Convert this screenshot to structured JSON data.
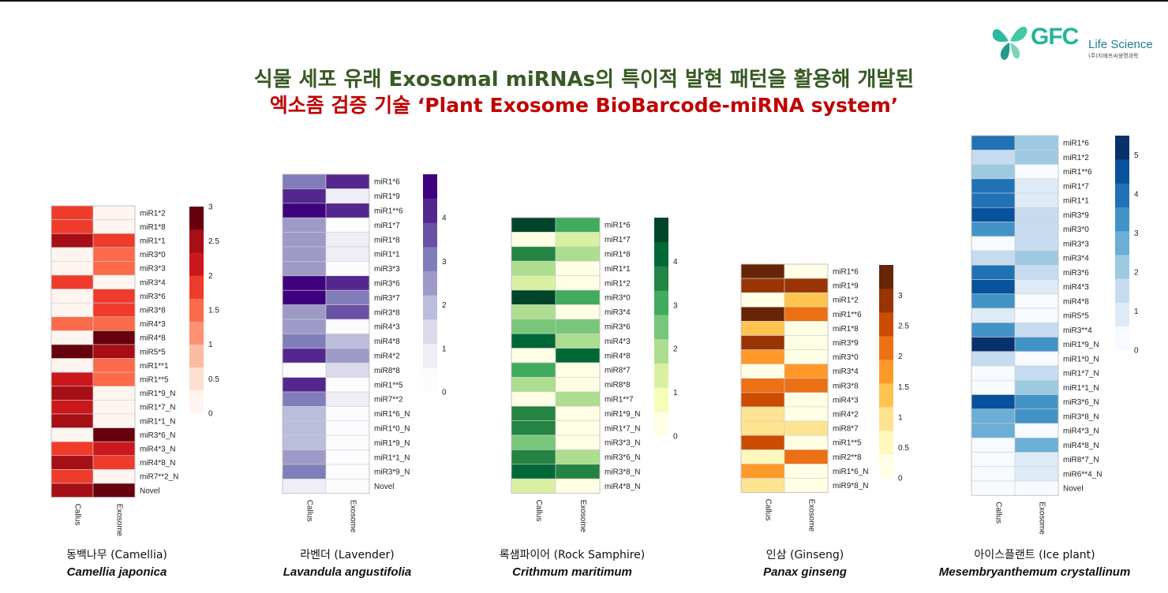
{
  "title_line1": "식물 세포 유래 Exosomal miRNAs의 특이적 발현 패턴을 활용해 개발된",
  "title_line2": "엑소좀 검증 기술  ‘Plant Exosome BioBarcode-miRNA system’",
  "logo": {
    "brand": "GFC",
    "name": "Life Science",
    "subtitle": "(주)지에프씨생명과학"
  },
  "chart_data": [
    {
      "type": "heatmap",
      "caption_kr": "동백나무 (Camellia)",
      "caption_sci": "Camellia japonica",
      "columns": [
        "Callus",
        "Exosome"
      ],
      "rows": [
        "miR1*2",
        "miR1*8",
        "miR1*1",
        "miR3*0",
        "miR3*3",
        "miR3*4",
        "miR3*6",
        "miR3*8",
        "miR4*3",
        "miR4*8",
        "miR5*5",
        "miR1**1",
        "miR1**5",
        "miR1*9_N",
        "miR1*7_N",
        "miR1*1_N",
        "miR3*6_N",
        "miR4*3_N",
        "miR4*8_N",
        "miR7**2_N",
        "Novel"
      ],
      "values": [
        [
          1.9,
          0.1
        ],
        [
          1.9,
          0.1
        ],
        [
          2.4,
          1.9
        ],
        [
          0.1,
          1.6
        ],
        [
          0.1,
          1.6
        ],
        [
          1.9,
          0.1
        ],
        [
          0.1,
          1.9
        ],
        [
          0.1,
          1.9
        ],
        [
          1.5,
          1.5
        ],
        [
          0.1,
          3.0
        ],
        [
          2.8,
          2.4
        ],
        [
          0.1,
          1.6
        ],
        [
          2.1,
          1.6
        ],
        [
          2.6,
          0.1
        ],
        [
          2.0,
          0.1
        ],
        [
          2.6,
          0.1
        ],
        [
          0.1,
          3.0
        ],
        [
          1.9,
          2.0
        ],
        [
          2.4,
          1.9
        ],
        [
          1.9,
          0.1
        ],
        [
          2.4,
          3.0
        ]
      ],
      "colorbar": {
        "min": 0,
        "max": 3,
        "ticks": [
          "3",
          "2.5",
          "2",
          "1.5",
          "1",
          "0.5",
          "0"
        ]
      },
      "colors": [
        "#fff5f0",
        "#fee0d2",
        "#fcbba1",
        "#fc9272",
        "#fb6a4a",
        "#ef3b2c",
        "#cb181d",
        "#a50f15",
        "#67000d"
      ]
    },
    {
      "type": "heatmap",
      "caption_kr": "라벤더 (Lavender)",
      "caption_sci": "Lavandula angustifolia",
      "columns": [
        "Callus",
        "Exosome"
      ],
      "rows": [
        "miR1*6",
        "miR1*9",
        "miR1**6",
        "miR1*7",
        "miR1*8",
        "miR1*1",
        "miR3*3",
        "miR3*6",
        "miR3*7",
        "miR3*8",
        "miR4*3",
        "miR4*8",
        "miR4*2",
        "miR8*8",
        "miR1**5",
        "miR7**2",
        "miR1*6_N",
        "miR1*0_N",
        "miR1*9_N",
        "miR1*1_N",
        "miR3*9_N",
        "Novel"
      ],
      "values": [
        [
          3.0,
          4.3
        ],
        [
          4.0,
          0.7
        ],
        [
          4.7,
          4.4
        ],
        [
          2.3,
          0.2
        ],
        [
          2.3,
          0.7
        ],
        [
          2.7,
          0.6
        ],
        [
          2.7,
          0.3
        ],
        [
          4.6,
          4.3
        ],
        [
          4.8,
          3.3
        ],
        [
          2.5,
          3.6
        ],
        [
          2.3,
          0.2
        ],
        [
          2.9,
          2.0
        ],
        [
          4.3,
          2.4
        ],
        [
          0.1,
          1.6
        ],
        [
          4.0,
          0.2
        ],
        [
          3.1,
          0.6
        ],
        [
          1.8,
          0.1
        ],
        [
          1.8,
          0.1
        ],
        [
          1.9,
          0.1
        ],
        [
          2.4,
          0.1
        ],
        [
          3.0,
          0.1
        ],
        [
          0.8,
          0.1
        ]
      ],
      "colorbar": {
        "min": 0,
        "max": 5,
        "ticks": [
          "4",
          "3",
          "2",
          "1",
          "0"
        ]
      },
      "colors": [
        "#fcfbfd",
        "#efedf5",
        "#dadaeb",
        "#bcbddc",
        "#9e9ac8",
        "#807dba",
        "#6a51a3",
        "#54278f",
        "#3f007d"
      ]
    },
    {
      "type": "heatmap",
      "caption_kr": "록샘파이어 (Rock Samphire)",
      "caption_sci": "Crithmum maritimum",
      "columns": [
        "Callus",
        "Exosome"
      ],
      "rows": [
        "miR1*6",
        "miR1*7",
        "miR1*8",
        "miR1*1",
        "miR1*2",
        "miR3*0",
        "miR3*4",
        "miR3*6",
        "miR4*3",
        "miR4*8",
        "miR8*7",
        "miR8*8",
        "miR1**7",
        "miR1*9_N",
        "miR1*7_N",
        "miR3*3_N",
        "miR3*6_N",
        "miR3*8_N",
        "miR4*8_N"
      ],
      "values": [
        [
          4.6,
          3.2
        ],
        [
          0.2,
          1.6
        ],
        [
          3.4,
          1.7
        ],
        [
          2.2,
          0.3
        ],
        [
          1.3,
          0.2
        ],
        [
          4.8,
          3.2
        ],
        [
          1.8,
          0.2
        ],
        [
          2.6,
          2.6
        ],
        [
          4.2,
          1.7
        ],
        [
          0.1,
          4.4
        ],
        [
          3.3,
          0.2
        ],
        [
          2.1,
          0.3
        ],
        [
          0.2,
          2.0
        ],
        [
          3.8,
          0.3
        ],
        [
          3.8,
          0.3
        ],
        [
          2.3,
          0.3
        ],
        [
          3.8,
          1.8
        ],
        [
          3.9,
          3.4
        ],
        [
          1.4,
          0.2
        ]
      ],
      "colorbar": {
        "min": 0,
        "max": 5,
        "ticks": [
          "4",
          "3",
          "2",
          "1",
          "0"
        ]
      },
      "colors": [
        "#ffffe5",
        "#f7fcb9",
        "#d9f0a3",
        "#addd8e",
        "#78c679",
        "#41ab5d",
        "#238443",
        "#006837",
        "#004529"
      ]
    },
    {
      "type": "heatmap",
      "caption_kr": "인삼 (Ginseng)",
      "caption_sci": "Panax ginseng",
      "columns": [
        "Callus",
        "Exosome"
      ],
      "rows": [
        "miR1*6",
        "miR1*9",
        "miR1*2",
        "miR1**6",
        "miR1*8",
        "miR3*9",
        "miR3*0",
        "miR3*4",
        "miR3*8",
        "miR4*3",
        "miR4*2",
        "miR8*7",
        "miR1**5",
        "miR2**8",
        "miR1*6_N",
        "miR9*8_N"
      ],
      "values": [
        [
          3.3,
          0.1
        ],
        [
          2.8,
          3.1
        ],
        [
          0.1,
          1.4
        ],
        [
          3.5,
          2.2
        ],
        [
          1.5,
          0.1
        ],
        [
          3.1,
          0.1
        ],
        [
          1.9,
          0.1
        ],
        [
          0.1,
          1.8
        ],
        [
          2.1,
          2.3
        ],
        [
          2.4,
          0.1
        ],
        [
          0.8,
          0.3
        ],
        [
          0.8,
          0.8
        ],
        [
          2.7,
          0.1
        ],
        [
          0.4,
          2.0
        ],
        [
          1.8,
          0.1
        ],
        [
          1.0,
          0.1
        ]
      ],
      "colorbar": {
        "min": 0,
        "max": 3.5,
        "ticks": [
          "3",
          "2.5",
          "2",
          "1.5",
          "1",
          "0.5",
          "0"
        ]
      },
      "colors": [
        "#ffffe5",
        "#fff7bc",
        "#fee391",
        "#fec44f",
        "#fe9929",
        "#ec7014",
        "#cc4c02",
        "#993404",
        "#662506"
      ]
    },
    {
      "type": "heatmap",
      "caption_kr": "아이스플랜트 (Ice plant)",
      "caption_sci": "Mesembryanthemum crystallinum",
      "columns": [
        "Callus",
        "Exosome"
      ],
      "rows": [
        "miR1*6",
        "miR1*2",
        "miR1**6",
        "miR1*7",
        "miR1*1",
        "miR3*9",
        "miR3*0",
        "miR3*3",
        "miR3*4",
        "miR3*6",
        "miR4*3",
        "miR4*8",
        "miR5*5",
        "miR3**4",
        "miR1*9_N",
        "miR1*0_N",
        "miR1*7_N",
        "miR1*1_N",
        "miR3*6_N",
        "miR3*8_N",
        "miR4*3_N",
        "miR4*8_N",
        "miR8*7_N",
        "miR6**4_N",
        "Novel"
      ],
      "values": [
        [
          4.0,
          2.1
        ],
        [
          1.5,
          1.9
        ],
        [
          1.9,
          0.2
        ],
        [
          4.0,
          1.2
        ],
        [
          4.2,
          1.2
        ],
        [
          4.7,
          1.5
        ],
        [
          3.4,
          1.6
        ],
        [
          0.2,
          1.7
        ],
        [
          1.4,
          1.9
        ],
        [
          3.9,
          1.6
        ],
        [
          4.4,
          1.2
        ],
        [
          3.6,
          0.2
        ],
        [
          1.2,
          0.3
        ],
        [
          3.6,
          1.4
        ],
        [
          5.3,
          3.6
        ],
        [
          1.4,
          0.3
        ],
        [
          0.5,
          1.4
        ],
        [
          0.5,
          2.1
        ],
        [
          4.7,
          3.1
        ],
        [
          2.8,
          3.4
        ],
        [
          3.0,
          0.3
        ],
        [
          0.5,
          2.8
        ],
        [
          0.4,
          1.2
        ],
        [
          0.3,
          1.2
        ],
        [
          0.2,
          0.2
        ]
      ],
      "colorbar": {
        "min": 0,
        "max": 5.5,
        "ticks": [
          "5",
          "4",
          "3",
          "2",
          "1",
          "0"
        ]
      },
      "colors": [
        "#f7fbff",
        "#deebf7",
        "#c6dbef",
        "#9ecae1",
        "#6baed6",
        "#4292c6",
        "#2171b5",
        "#08519c",
        "#08306b"
      ]
    }
  ]
}
